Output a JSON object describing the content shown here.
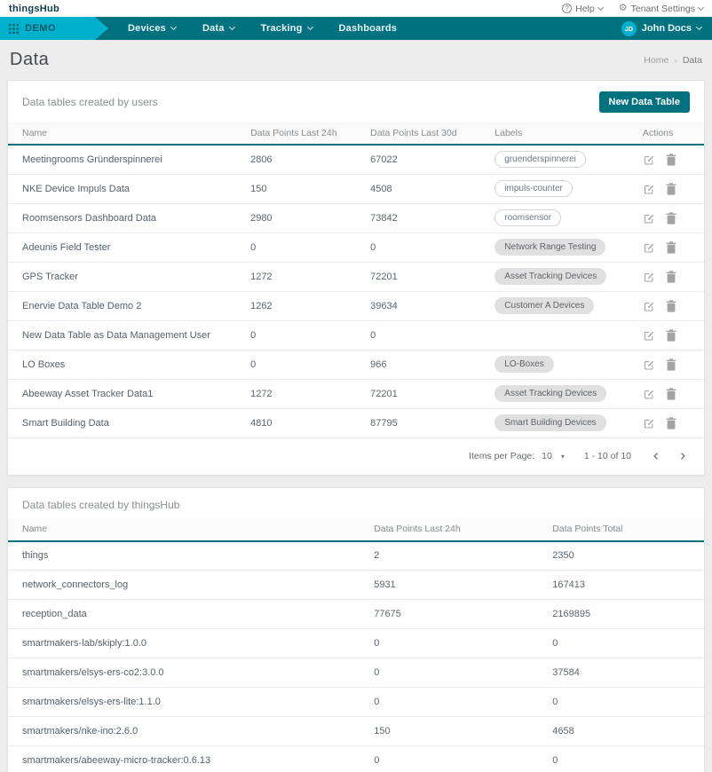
{
  "topbar": {
    "logo": "thingsHub",
    "help_label": "Help",
    "tenant_settings_label": "Tenant Settings"
  },
  "navbar": {
    "tenant": "DEMO",
    "items": [
      {
        "label": "Devices"
      },
      {
        "label": "Data"
      },
      {
        "label": "Tracking"
      },
      {
        "label": "Dashboards"
      }
    ],
    "user": {
      "initials": "JD",
      "name": "John Docs"
    }
  },
  "page": {
    "title": "Data",
    "breadcrumb": {
      "home": "Home",
      "separator": "›",
      "current": "Data"
    }
  },
  "user_tables_card": {
    "title": "Data tables created by users",
    "new_button_label": "New Data Table",
    "columns": [
      "Name",
      "Data Points Last 24h",
      "Data Points Last 30d",
      "Labels",
      "Actions"
    ],
    "rows": [
      {
        "name": "Meetingrooms Gründerspinnerei",
        "points_24h": "2806",
        "points_30d": "67022",
        "label": "gruenderspinnerei",
        "label_style": "outlined"
      },
      {
        "name": "NKE Device Impuls Data",
        "points_24h": "150",
        "points_30d": "4508",
        "label": "impuls-counter",
        "label_style": "outlined"
      },
      {
        "name": "Roomsensors Dashboard Data",
        "points_24h": "2980",
        "points_30d": "73842",
        "label": "roomsensor",
        "label_style": "outlined"
      },
      {
        "name": "Adeunis Field Tester",
        "points_24h": "0",
        "points_30d": "0",
        "label": "Network Range Testing",
        "label_style": "filled"
      },
      {
        "name": "GPS Tracker",
        "points_24h": "1272",
        "points_30d": "72201",
        "label": "Asset Tracking Devices",
        "label_style": "filled"
      },
      {
        "name": "Enervie Data Table Demo 2",
        "points_24h": "1262",
        "points_30d": "39634",
        "label": "Customer A Devices",
        "label_style": "filled"
      },
      {
        "name": "New Data Table as Data Management User",
        "points_24h": "0",
        "points_30d": "0",
        "label": "",
        "label_style": "none"
      },
      {
        "name": "LO Boxes",
        "points_24h": "0",
        "points_30d": "966",
        "label": "LO-Boxes",
        "label_style": "filled"
      },
      {
        "name": "Abeeway Asset Tracker Data1",
        "points_24h": "1272",
        "points_30d": "72201",
        "label": "Asset Tracking Devices",
        "label_style": "filled"
      },
      {
        "name": "Smart Building Data",
        "points_24h": "4810",
        "points_30d": "87795",
        "label": "Smart Building Devices",
        "label_style": "filled"
      }
    ],
    "pagination": {
      "items_per_page_label": "Items per Page:",
      "items_per_page_value": "10",
      "range_label": "1 - 10 of 10"
    }
  },
  "system_tables_card": {
    "title": "Data tables created by thingsHub",
    "columns": [
      "Name",
      "Data Points Last 24h",
      "Data Points Total"
    ],
    "rows": [
      {
        "name": "things",
        "points_24h": "2",
        "points_total": "2350"
      },
      {
        "name": "network_connectors_log",
        "points_24h": "5931",
        "points_total": "167413"
      },
      {
        "name": "reception_data",
        "points_24h": "77675",
        "points_total": "2169895"
      },
      {
        "name": "smartmakers-lab/skiply:1.0.0",
        "points_24h": "0",
        "points_total": "0"
      },
      {
        "name": "smartmakers/elsys-ers-co2:3.0.0",
        "points_24h": "0",
        "points_total": "37584"
      },
      {
        "name": "smartmakers/elsys-ers-lite:1.1.0",
        "points_24h": "0",
        "points_total": "0"
      },
      {
        "name": "smartmakers/nke-ino:2.6.0",
        "points_24h": "150",
        "points_total": "4658"
      },
      {
        "name": "smartmakers/abeeway-micro-tracker:0.6.13",
        "points_24h": "0",
        "points_total": "0"
      }
    ]
  },
  "icons": {
    "select_caret": "▾",
    "gear": "⚙"
  },
  "colors": {
    "teal_dark": "#00717F",
    "cyan_bright": "#00B1CD",
    "pill_gray": "#E0E0E0"
  }
}
